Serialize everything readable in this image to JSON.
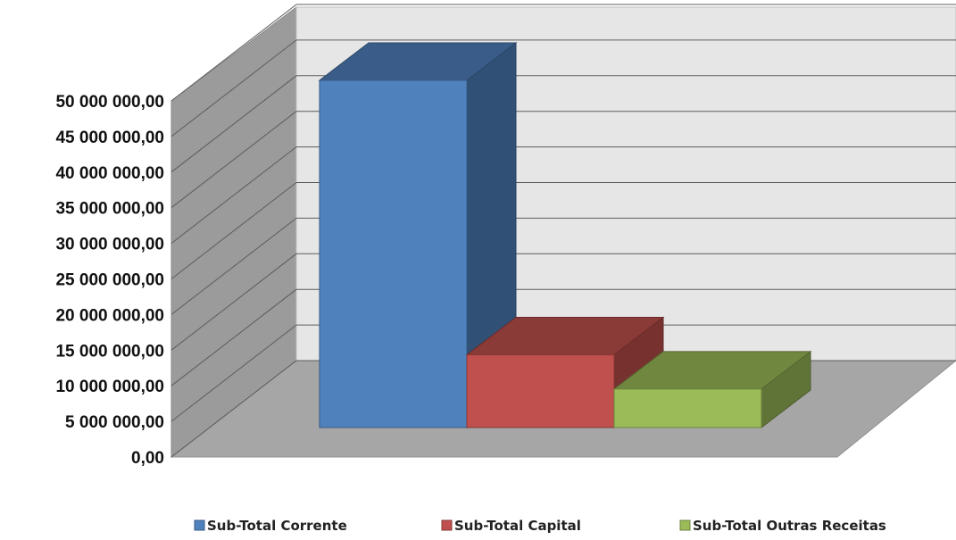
{
  "chart_data": {
    "type": "bar",
    "style": "3d-clustered-column",
    "categories": [
      "Sub-Total Corrente",
      "Sub-Total Capital",
      "Sub-Total Outras Receitas"
    ],
    "values": [
      48700000,
      10200000,
      5400000
    ],
    "colors": {
      "Sub-Total Corrente": "#4F81BD",
      "Sub-Total Capital": "#C0504D",
      "Sub-Total Outras Receitas": "#9BBB59"
    },
    "ylim": [
      0,
      50000000
    ],
    "y_ticks": [
      0,
      5000000,
      10000000,
      15000000,
      20000000,
      25000000,
      30000000,
      35000000,
      40000000,
      45000000,
      50000000
    ],
    "y_tick_labels": [
      "0,00",
      "5 000 000,00",
      "10 000 000,00",
      "15 000 000,00",
      "20 000 000,00",
      "25 000 000,00",
      "30 000 000,00",
      "35 000 000,00",
      "40 000 000,00",
      "45 000 000,00",
      "50 000 000,00"
    ],
    "title": "",
    "xlabel": "",
    "ylabel": "",
    "grid": true,
    "legend_position": "bottom",
    "legend": [
      "Sub-Total Corrente",
      "Sub-Total Capital",
      "Sub-Total Outras Receitas"
    ]
  }
}
